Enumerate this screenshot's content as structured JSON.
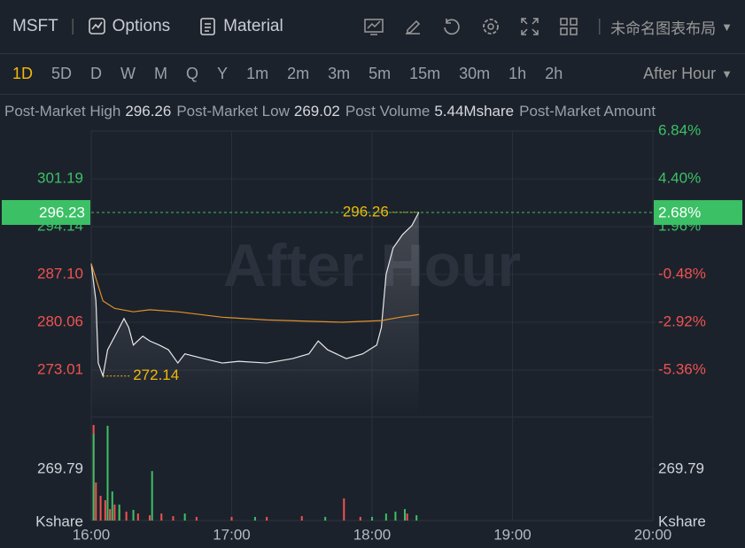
{
  "toolbar": {
    "symbol": "MSFT",
    "buttons": [
      "Options",
      "Material"
    ],
    "layout_name": "未命名图表布局"
  },
  "periods": {
    "items": [
      "1D",
      "5D",
      "D",
      "W",
      "M",
      "Q",
      "Y",
      "1m",
      "2m",
      "3m",
      "5m",
      "15m",
      "30m",
      "1h",
      "2h"
    ],
    "session": "After Hour"
  },
  "stats": [
    {
      "label": "Post-Market High",
      "value": "296.26"
    },
    {
      "label": "Post-Market Low",
      "value": "269.02"
    },
    {
      "label": "Post Volume",
      "value": "5.44Mshare"
    },
    {
      "label": "Post-Market Amount"
    }
  ],
  "chart_data": {
    "type": "line",
    "watermark": "After Hour",
    "xlim": [
      "16:00",
      "20:00"
    ],
    "xticks": [
      "16:00",
      "17:00",
      "18:00",
      "19:00",
      "20:00"
    ],
    "series": [
      {
        "color": "#e8e8e8",
        "x": [
          "16:00",
          "16:02",
          "16:03",
          "16:05",
          "16:07",
          "16:09",
          "16:11",
          "16:14",
          "16:16",
          "16:18",
          "16:22",
          "16:25",
          "16:29",
          "16:33",
          "16:37",
          "16:40",
          "16:48",
          "16:56",
          "17:03",
          "17:15",
          "17:26",
          "17:33",
          "17:37",
          "17:41",
          "17:49",
          "17:56",
          "18:02",
          "18:04",
          "18:06",
          "18:09",
          "18:13",
          "18:17",
          "18:20"
        ],
        "values": [
          288.7,
          283.2,
          274.05,
          272.14,
          276.0,
          277.3,
          278.6,
          280.6,
          279.3,
          276.7,
          278.0,
          277.3,
          276.7,
          276.0,
          274.05,
          275.4,
          274.7,
          274.05,
          274.3,
          274.05,
          274.7,
          275.4,
          277.3,
          276.0,
          274.7,
          275.4,
          276.7,
          279.3,
          287.1,
          291.0,
          292.96,
          294.3,
          296.26
        ]
      },
      {
        "color": "#e0902a",
        "x": [
          "16:00",
          "16:05",
          "16:10",
          "16:18",
          "16:25",
          "16:37",
          "16:56",
          "17:15",
          "17:33",
          "17:47",
          "18:04",
          "18:12",
          "18:20"
        ],
        "values": [
          288.7,
          283.2,
          282.1,
          281.6,
          281.9,
          281.6,
          280.8,
          280.4,
          280.2,
          280.06,
          280.3,
          280.8,
          281.2
        ]
      }
    ],
    "ylim": [
      266.23,
      308.23
    ],
    "yticks": [
      301.19,
      294.14,
      {
        "value": 287.1,
        "label": "287.10"
      },
      280.06,
      273.01
    ],
    "y2lim": [
      -7.71,
      6.84
    ],
    "y2ticks": [
      {
        "value": 6.84,
        "label": "6.84%"
      },
      {
        "value": 4.4,
        "label": "4.40%"
      },
      {
        "value": 1.96,
        "label": "1.96%"
      },
      {
        "value": -0.48,
        "label": "-0.48%"
      },
      {
        "value": -2.92,
        "label": "-2.92%"
      },
      {
        "value": -5.36,
        "label": "-5.36%"
      }
    ],
    "last_price": 296.23,
    "last_change": {
      "value": 2.68,
      "label": "2.68%"
    },
    "high": {
      "x": "18:20",
      "value": 296.26
    },
    "low": {
      "x": "16:05",
      "value": 272.14
    },
    "up_color": "#3cc065",
    "down_color": "#ef5350",
    "grid": true,
    "volume": {
      "ylim": [
        0,
        539.58
      ],
      "yticks": [
        269.79
      ],
      "unit": "Kshare",
      "series": [
        {
          "color": "#ef5350",
          "x": [
            "16:01",
            "16:02",
            "16:04",
            "16:06",
            "16:08",
            "16:10",
            "16:12",
            "16:15",
            "16:20",
            "16:25",
            "16:30",
            "16:35",
            "16:45",
            "17:00",
            "17:15",
            "17:30",
            "17:48",
            "17:55",
            "18:15"
          ],
          "values": [
            502,
            200,
            130,
            107,
            60,
            84,
            60,
            47,
            37,
            28,
            37,
            23,
            19,
            19,
            19,
            23,
            116,
            19,
            37
          ]
        },
        {
          "color": "#3cc065",
          "x": [
            "16:01",
            "16:07",
            "16:09",
            "16:12",
            "16:18",
            "16:26",
            "16:40",
            "17:10",
            "17:40",
            "18:00",
            "18:06",
            "18:10",
            "18:14",
            "18:19"
          ],
          "values": [
            456,
            498,
            153,
            84,
            56,
            260,
            37,
            19,
            19,
            19,
            37,
            47,
            60,
            28
          ]
        }
      ]
    }
  }
}
